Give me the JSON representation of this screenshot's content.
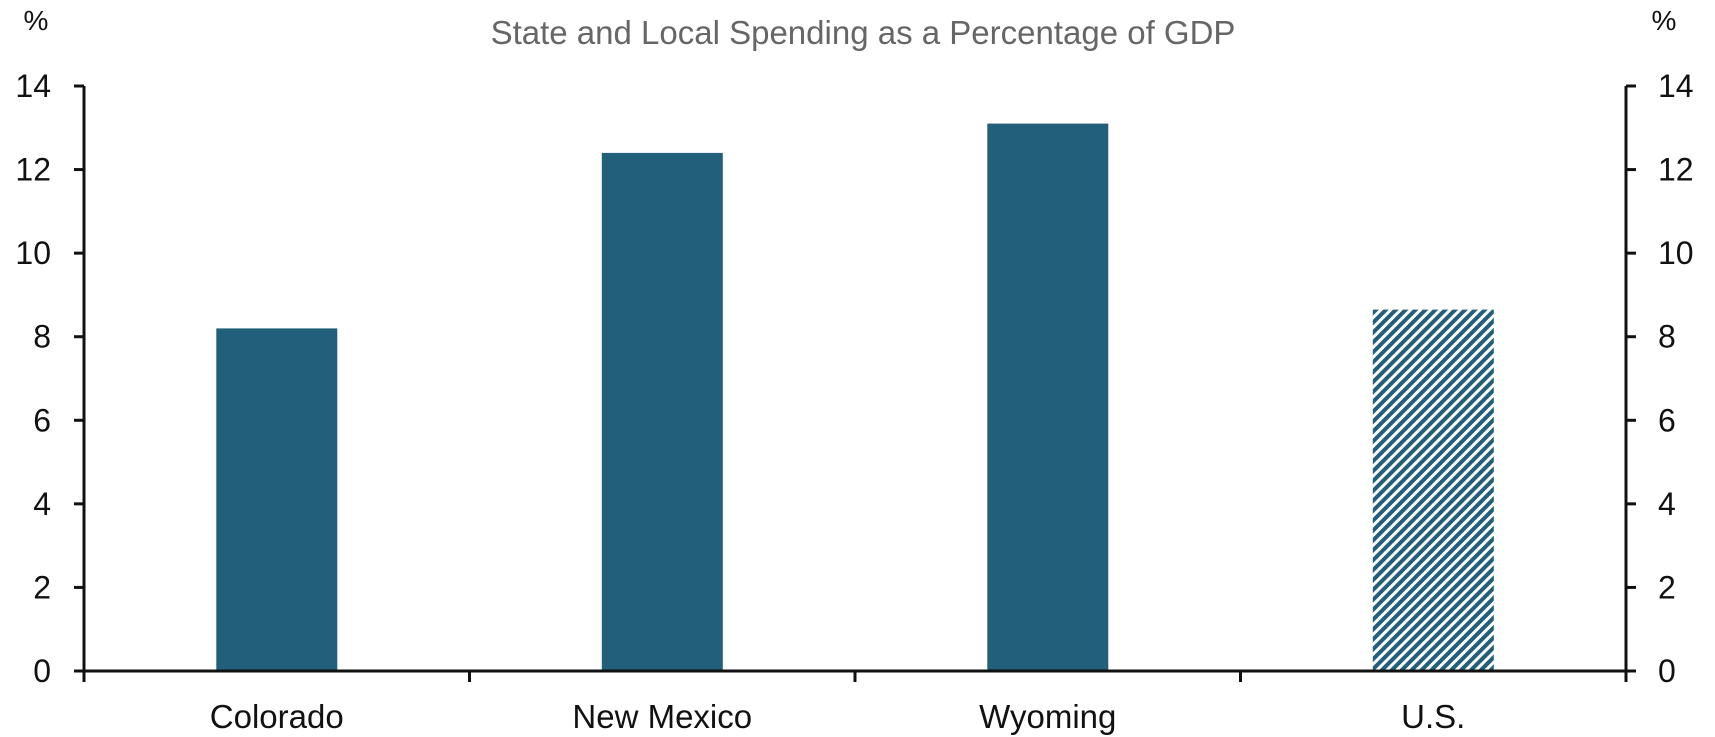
{
  "chart_data": {
    "type": "bar",
    "title": "State and Local Spending as a Percentage of GDP",
    "left_unit": "%",
    "right_unit": "%",
    "categories": [
      "Colorado",
      "New Mexico",
      "Wyoming",
      "U.S."
    ],
    "values": [
      8.2,
      12.4,
      13.1,
      8.65
    ],
    "bar_styles": [
      "solid",
      "solid",
      "solid",
      "hatched"
    ],
    "ylim": [
      0,
      14
    ],
    "yticks": [
      0,
      2,
      4,
      6,
      8,
      10,
      12,
      14
    ],
    "ytick_labels": [
      "0",
      "2",
      "4",
      "6",
      "8",
      "10",
      "12",
      "14"
    ],
    "grid": false,
    "colors": {
      "bar": "#215f7a",
      "hatch_bg": "#ffffff",
      "axis": "#111111",
      "title": "#666666"
    }
  }
}
